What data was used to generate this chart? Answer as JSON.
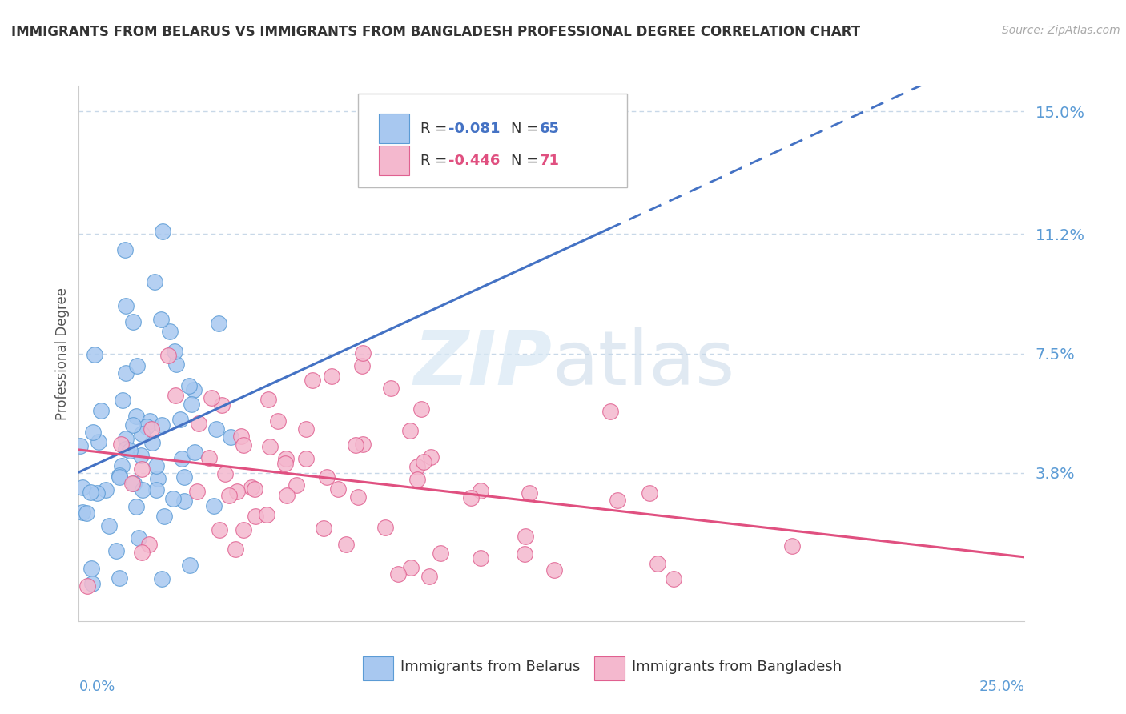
{
  "title": "IMMIGRANTS FROM BELARUS VS IMMIGRANTS FROM BANGLADESH PROFESSIONAL DEGREE CORRELATION CHART",
  "source": "Source: ZipAtlas.com",
  "ylabel": "Professional Degree",
  "xmin": 0.0,
  "xmax": 0.25,
  "ymin": -0.008,
  "ymax": 0.158,
  "watermark_zip": "ZIP",
  "watermark_atlas": "atlas",
  "legend_r1": "-0.081",
  "legend_n1": "65",
  "legend_r2": "-0.446",
  "legend_n2": "71",
  "color_belarus_fill": "#a8c8f0",
  "color_belarus_edge": "#5b9bd5",
  "color_bangladesh_fill": "#f4b8ce",
  "color_bangladesh_edge": "#e06090",
  "color_reg_belarus": "#4472c4",
  "color_reg_bangladesh": "#e05080",
  "background_color": "#ffffff",
  "grid_color": "#c8d8e8",
  "title_color": "#333333",
  "axis_tick_color": "#5b9bd5",
  "ytick_labels": [
    "3.8%",
    "7.5%",
    "11.2%",
    "15.0%"
  ],
  "ytick_values": [
    0.038,
    0.075,
    0.112,
    0.15
  ]
}
